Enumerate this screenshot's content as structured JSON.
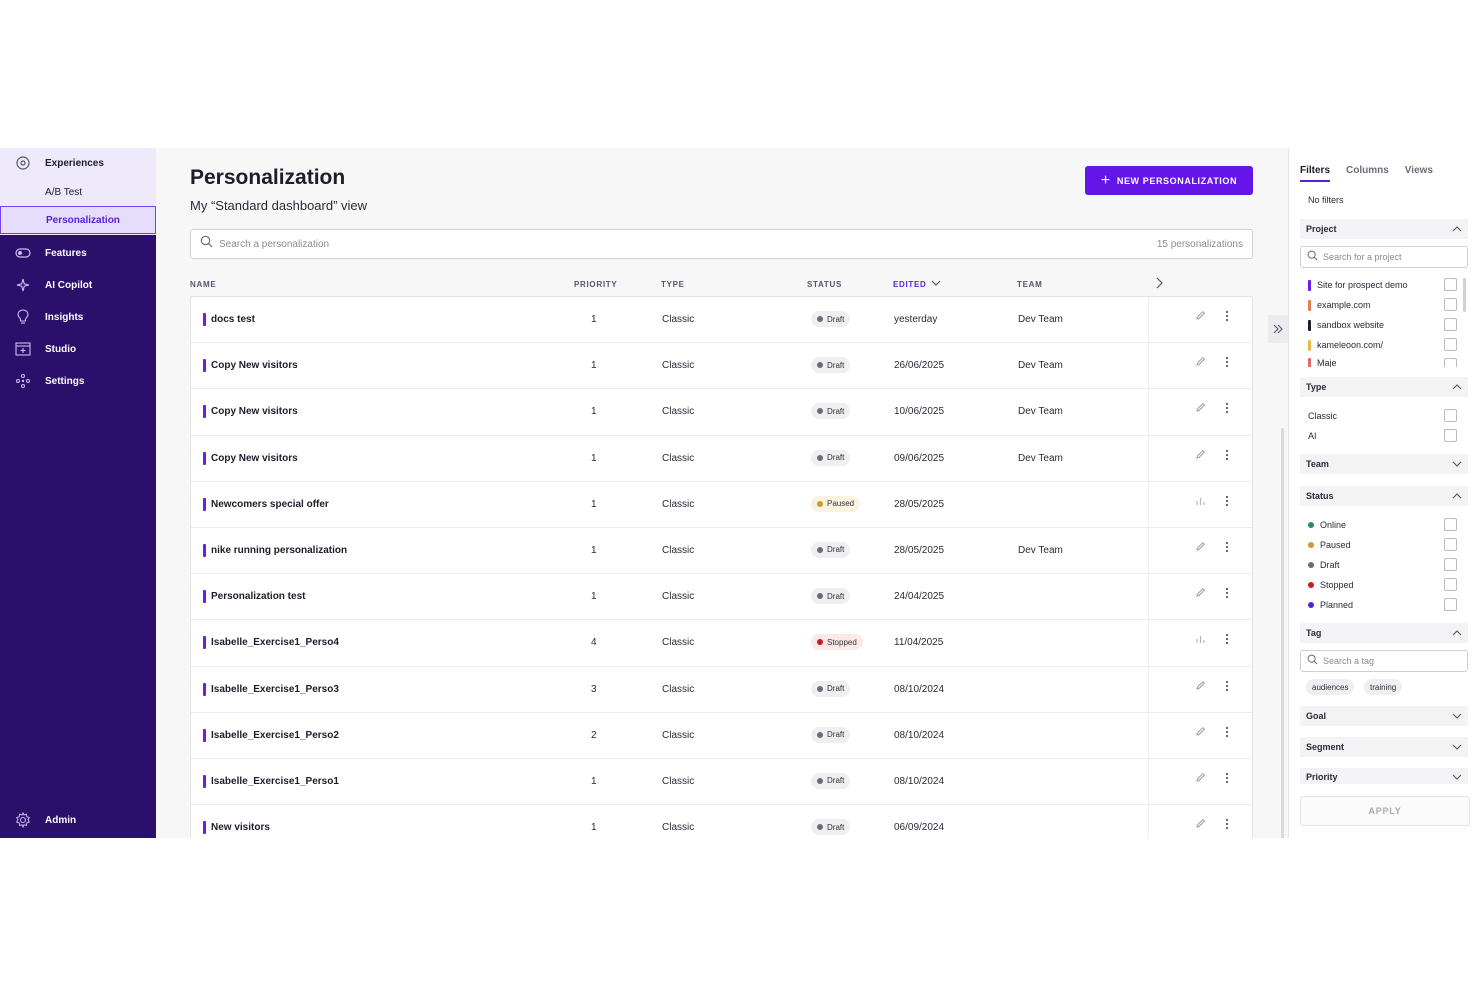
{
  "sidebar": {
    "experiences": "Experiences",
    "sub_items": [
      "A/B Test",
      "Personalization"
    ],
    "items": [
      {
        "label": "Features",
        "icon": "features-icon"
      },
      {
        "label": "AI Copilot",
        "icon": "ai-copilot-icon"
      },
      {
        "label": "Insights",
        "icon": "lightbulb-icon"
      },
      {
        "label": "Studio",
        "icon": "studio-icon"
      },
      {
        "label": "Settings",
        "icon": "settings-icon"
      }
    ],
    "admin": "Admin"
  },
  "main": {
    "title": "Personalization",
    "subtitle": "My “Standard dashboard” view",
    "new_button": "NEW PERSONALIZATION",
    "search_placeholder": "Search a personalization",
    "count": "15 personalizations",
    "columns": {
      "name": "NAME",
      "priority": "PRIORITY",
      "type": "TYPE",
      "status": "STATUS",
      "edited": "EDITED",
      "team": "TEAM"
    },
    "rows": [
      {
        "name": "docs test",
        "priority": "1",
        "type": "Classic",
        "status": "Draft",
        "edited": "yesterday",
        "team": "Dev Team",
        "action": "edit"
      },
      {
        "name": "Copy New visitors",
        "priority": "1",
        "type": "Classic",
        "status": "Draft",
        "edited": "26/06/2025",
        "team": "Dev Team",
        "action": "edit"
      },
      {
        "name": "Copy New visitors",
        "priority": "1",
        "type": "Classic",
        "status": "Draft",
        "edited": "10/06/2025",
        "team": "Dev Team",
        "action": "edit"
      },
      {
        "name": "Copy New visitors",
        "priority": "1",
        "type": "Classic",
        "status": "Draft",
        "edited": "09/06/2025",
        "team": "Dev Team",
        "action": "edit"
      },
      {
        "name": "Newcomers special offer",
        "priority": "1",
        "type": "Classic",
        "status": "Paused",
        "edited": "28/05/2025",
        "team": "",
        "action": "chart"
      },
      {
        "name": "nike running personalization",
        "priority": "1",
        "type": "Classic",
        "status": "Draft",
        "edited": "28/05/2025",
        "team": "Dev Team",
        "action": "edit"
      },
      {
        "name": "Personalization test",
        "priority": "1",
        "type": "Classic",
        "status": "Draft",
        "edited": "24/04/2025",
        "team": "",
        "action": "edit"
      },
      {
        "name": "Isabelle_Exercise1_Perso4",
        "priority": "4",
        "type": "Classic",
        "status": "Stopped",
        "edited": "11/04/2025",
        "team": "",
        "action": "chart"
      },
      {
        "name": "Isabelle_Exercise1_Perso3",
        "priority": "3",
        "type": "Classic",
        "status": "Draft",
        "edited": "08/10/2024",
        "team": "",
        "action": "edit"
      },
      {
        "name": "Isabelle_Exercise1_Perso2",
        "priority": "2",
        "type": "Classic",
        "status": "Draft",
        "edited": "08/10/2024",
        "team": "",
        "action": "edit"
      },
      {
        "name": "Isabelle_Exercise1_Perso1",
        "priority": "1",
        "type": "Classic",
        "status": "Draft",
        "edited": "08/10/2024",
        "team": "",
        "action": "edit"
      },
      {
        "name": "New visitors",
        "priority": "1",
        "type": "Classic",
        "status": "Draft",
        "edited": "06/09/2024",
        "team": "",
        "action": "edit"
      }
    ]
  },
  "panel": {
    "tabs": [
      "Filters",
      "Columns",
      "Views"
    ],
    "no_filters": "No filters",
    "project": {
      "label": "Project",
      "search_placeholder": "Search for a project",
      "options": [
        {
          "label": "Site for prospect demo",
          "color": "#6a1ce8"
        },
        {
          "label": "example.com",
          "color": "#e0814a"
        },
        {
          "label": "sandbox website",
          "color": "#1d1d2b"
        },
        {
          "label": "kameleoon.com/",
          "color": "#e7b84a"
        },
        {
          "label": "Maje",
          "color": "#e06a6a"
        }
      ]
    },
    "type": {
      "label": "Type",
      "options": [
        "Classic",
        "AI"
      ]
    },
    "team": {
      "label": "Team"
    },
    "status": {
      "label": "Status",
      "options": [
        {
          "label": "Online",
          "color": "#2e8a5a"
        },
        {
          "label": "Paused",
          "color": "#d39a2a"
        },
        {
          "label": "Draft",
          "color": "#6b6c78"
        },
        {
          "label": "Stopped",
          "color": "#c81d1d"
        },
        {
          "label": "Planned",
          "color": "#5a1ed6"
        }
      ]
    },
    "tag": {
      "label": "Tag",
      "search_placeholder": "Search a tag",
      "chips": [
        "audiences",
        "training"
      ]
    },
    "goal": "Goal",
    "segment": "Segment",
    "priority": "Priority",
    "apply": "APPLY"
  },
  "status_colors": {
    "Draft": "#6b6c78",
    "Paused": "#d39a2a",
    "Stopped": "#c81d1d"
  }
}
